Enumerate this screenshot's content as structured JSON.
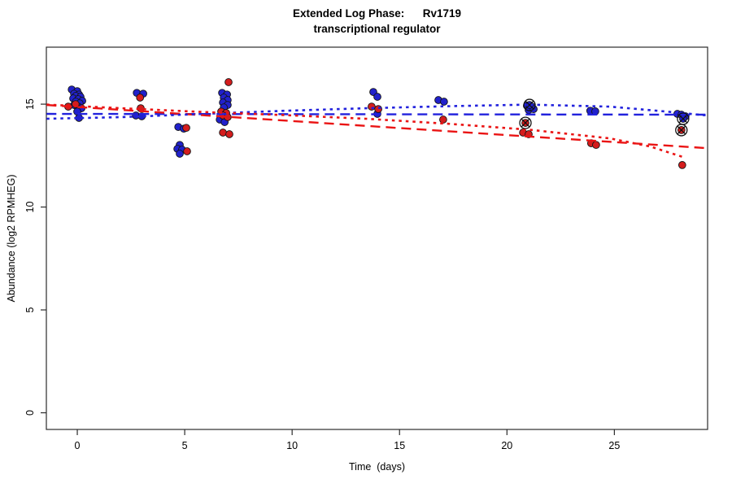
{
  "title": {
    "line1": "Extended Log Phase:      Rv1719",
    "line2": "transcriptional regulator"
  },
  "chart_data": {
    "type": "scatter",
    "title": "Extended Log Phase: Rv1719 transcriptional regulator",
    "xlabel": "Time  (days)",
    "ylabel": "Abundance  (log2 RPMHEG)",
    "xlim": [
      -1.44,
      29.34
    ],
    "ylim": [
      -0.81,
      17.77
    ],
    "xticks": [
      0,
      5,
      10,
      15,
      20,
      25
    ],
    "yticks": [
      0,
      5,
      10,
      15
    ],
    "grid": false,
    "legend": "none",
    "series": [
      {
        "name": "blue-points",
        "color": "#2121cc",
        "points": [
          [
            -0.26,
            15.71
          ],
          [
            0.0,
            15.63
          ],
          [
            -0.15,
            15.51
          ],
          [
            0.08,
            15.47
          ],
          [
            -0.07,
            15.4
          ],
          [
            0.15,
            15.36
          ],
          [
            -0.19,
            15.28
          ],
          [
            0.04,
            15.24
          ],
          [
            0.23,
            15.16
          ],
          [
            -0.07,
            15.12
          ],
          [
            0.11,
            15.04
          ],
          [
            -0.15,
            14.96
          ],
          [
            0.04,
            14.88
          ],
          [
            0.19,
            14.8
          ],
          [
            0.0,
            14.64
          ],
          [
            0.08,
            14.33
          ],
          [
            2.77,
            15.55
          ],
          [
            3.07,
            15.51
          ],
          [
            2.73,
            14.45
          ],
          [
            3.0,
            14.41
          ],
          [
            4.7,
            13.89
          ],
          [
            4.96,
            13.81
          ],
          [
            4.77,
            13.02
          ],
          [
            4.66,
            12.83
          ],
          [
            4.88,
            12.79
          ],
          [
            4.77,
            12.59
          ],
          [
            6.74,
            15.55
          ],
          [
            6.97,
            15.47
          ],
          [
            6.82,
            15.32
          ],
          [
            7.0,
            15.2
          ],
          [
            6.78,
            15.08
          ],
          [
            7.0,
            14.96
          ],
          [
            6.82,
            14.84
          ],
          [
            6.63,
            14.25
          ],
          [
            6.86,
            14.13
          ],
          [
            13.78,
            15.59
          ],
          [
            13.97,
            15.36
          ],
          [
            13.97,
            14.53
          ],
          [
            16.81,
            15.2
          ],
          [
            17.07,
            15.12
          ],
          [
            20.93,
            14.92
          ],
          [
            21.16,
            14.88
          ],
          [
            21.01,
            14.72
          ],
          [
            21.24,
            14.76
          ],
          [
            21.05,
            14.96
          ],
          [
            23.88,
            14.68
          ],
          [
            24.11,
            14.65
          ],
          [
            27.93,
            14.53
          ],
          [
            28.12,
            14.49
          ],
          [
            28.31,
            14.41
          ],
          [
            28.2,
            14.29
          ]
        ]
      },
      {
        "name": "red-points",
        "color": "#d41d1d",
        "points": [
          [
            -0.42,
            14.88
          ],
          [
            -0.08,
            15.0
          ],
          [
            2.92,
            15.32
          ],
          [
            2.95,
            14.8
          ],
          [
            5.07,
            13.85
          ],
          [
            5.11,
            12.71
          ],
          [
            7.04,
            16.07
          ],
          [
            6.7,
            14.64
          ],
          [
            6.93,
            14.57
          ],
          [
            6.78,
            14.45
          ],
          [
            7.0,
            14.37
          ],
          [
            6.78,
            13.62
          ],
          [
            7.08,
            13.54
          ],
          [
            13.7,
            14.88
          ],
          [
            14.01,
            14.76
          ],
          [
            17.03,
            14.25
          ],
          [
            20.86,
            14.09
          ],
          [
            20.75,
            13.62
          ],
          [
            21.01,
            13.54
          ],
          [
            23.92,
            13.1
          ],
          [
            24.15,
            13.02
          ],
          [
            28.12,
            13.74
          ],
          [
            28.16,
            12.04
          ]
        ]
      }
    ],
    "flagged_points": {
      "marker": "circle-x",
      "color": "#111111",
      "points": [
        [
          21.05,
          14.96
        ],
        [
          20.86,
          14.09
        ],
        [
          28.2,
          14.29
        ],
        [
          28.12,
          13.74
        ]
      ]
    },
    "trend_lines": [
      {
        "name": "blue-linear-fit",
        "color": "#2222dd",
        "style": "longdash",
        "points": [
          [
            -1.43,
            14.53
          ],
          [
            29.34,
            14.49
          ]
        ]
      },
      {
        "name": "red-linear-fit",
        "color": "#ea1414",
        "style": "longdash",
        "points": [
          [
            -1.43,
            14.96
          ],
          [
            29.34,
            12.86
          ]
        ]
      },
      {
        "name": "blue-quadratic-fit",
        "color": "#2222dd",
        "style": "dotted",
        "points": [
          [
            -1.43,
            14.29
          ],
          [
            2.09,
            14.37
          ],
          [
            5.87,
            14.53
          ],
          [
            9.65,
            14.68
          ],
          [
            13.44,
            14.8
          ],
          [
            17.22,
            14.9
          ],
          [
            21.01,
            14.98
          ],
          [
            24.79,
            14.88
          ],
          [
            27.44,
            14.64
          ],
          [
            29.34,
            14.45
          ]
        ]
      },
      {
        "name": "red-quadratic-fit",
        "color": "#ea1414",
        "style": "dotted",
        "points": [
          [
            -1.43,
            14.98
          ],
          [
            2.09,
            14.8
          ],
          [
            5.87,
            14.62
          ],
          [
            9.65,
            14.47
          ],
          [
            13.44,
            14.29
          ],
          [
            17.22,
            14.05
          ],
          [
            21.01,
            13.76
          ],
          [
            24.79,
            13.34
          ],
          [
            26.68,
            12.94
          ],
          [
            28.2,
            12.43
          ]
        ]
      }
    ]
  }
}
